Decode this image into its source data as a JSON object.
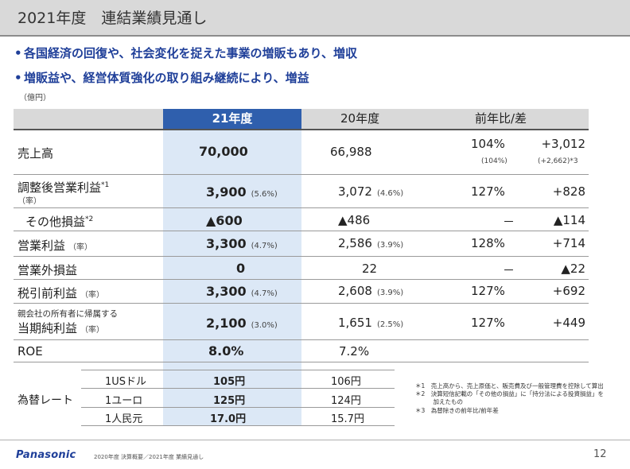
{
  "title": "2021年度　連結業績見通し",
  "bullets": [
    "各国経済の回復や、社会変化を捉えた事業の増販もあり、増収",
    "増販益や、経営体質強化の取り組み継続により、増益"
  ],
  "bullet_mark": "•",
  "unit": "（億円）",
  "headers": {
    "fy21": "21年度",
    "fy20": "20年度",
    "yoy": "前年比/差"
  },
  "rows": {
    "sales": {
      "label": "売上高",
      "fy21": "70,000",
      "fy20": "66,988",
      "yoy": "104%",
      "diff": "+3,012",
      "yoy_sub": "(104%)",
      "diff_sub": "(+2,662)*3"
    },
    "adj_op": {
      "label": "調整後営業利益",
      "note": "*1",
      "rate_label": "（率）",
      "fy21": "3,900",
      "fy21_pct": "(5.6%)",
      "fy20": "3,072",
      "fy20_pct": "(4.6%)",
      "yoy": "127%",
      "diff": "+828"
    },
    "other": {
      "label": "その他損益",
      "note": "*2",
      "fy21": "▲600",
      "fy20": "▲486",
      "yoy": "－",
      "diff": "▲114"
    },
    "op": {
      "label": "営業利益",
      "rate_label": "（率）",
      "fy21": "3,300",
      "fy21_pct": "(4.7%)",
      "fy20": "2,586",
      "fy20_pct": "(3.9%)",
      "yoy": "128%",
      "diff": "+714"
    },
    "nonop": {
      "label": "営業外損益",
      "fy21": "0",
      "fy20": "22",
      "yoy": "－",
      "diff": "▲22"
    },
    "pretax": {
      "label": "税引前利益",
      "rate_label": "（率）",
      "fy21": "3,300",
      "fy21_pct": "(4.7%)",
      "fy20": "2,608",
      "fy20_pct": "(3.9%)",
      "yoy": "127%",
      "diff": "+692"
    },
    "net": {
      "label_small": "親会社の所有者に帰属する",
      "label": "当期純利益",
      "rate_label": "（率）",
      "fy21": "2,100",
      "fy21_pct": "(3.0%)",
      "fy20": "1,651",
      "fy20_pct": "(2.5%)",
      "yoy": "127%",
      "diff": "+449"
    },
    "roe": {
      "label": "ROE",
      "fy21": "8.0%",
      "fy20": "7.2%"
    }
  },
  "fx": {
    "label": "為替レート",
    "rows": [
      {
        "currency": "1USドル",
        "fy21": "105円",
        "fy20": "106円"
      },
      {
        "currency": "1ユーロ",
        "fy21": "125円",
        "fy20": "124円"
      },
      {
        "currency": "1人民元",
        "fy21": "17.0円",
        "fy20": "15.7円"
      }
    ]
  },
  "notes": [
    "＊1　売上高から、売上原価と、販売費及び一般管理費を控除して算出",
    "＊2　決算短信記載の「その他の損益」に「持分法による投資損益」を",
    "　　　加えたもの",
    "＊3　為替除きの前年比/前年差"
  ],
  "footer": {
    "logo": "Panasonic",
    "text": "2020年度 決算概要／2021年度 業績見通し",
    "page": "12"
  },
  "colors": {
    "brand": "#1f3f99",
    "header_fill": "#2f5fad",
    "highlight": "#dce8f6"
  }
}
